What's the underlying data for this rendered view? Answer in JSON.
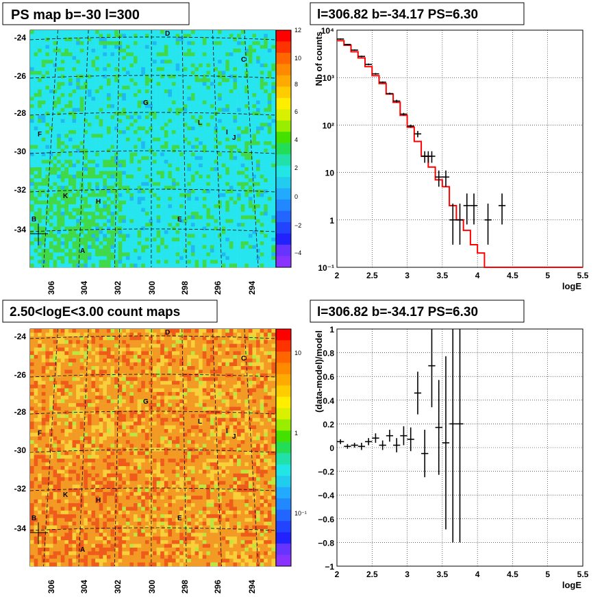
{
  "panels": {
    "map_top": {
      "title": "PS map b=-30 l=300",
      "palette_labels": [
        "12",
        "10",
        "8",
        "6",
        "4",
        "2",
        "0",
        "−2",
        "−4"
      ]
    },
    "map_bottom": {
      "title": "2.50<logE<3.00 count maps",
      "palette_labels": [
        "10",
        "1",
        "10⁻¹"
      ]
    },
    "spectrum": {
      "title": "l=306.82 b=-34.17 PS=6.30"
    },
    "residual": {
      "title": "l=306.82 b=-34.17 PS=6.30"
    }
  },
  "map_common": {
    "lat_ticks": [
      "-24",
      "-26",
      "-28",
      "-30",
      "-32",
      "-34"
    ],
    "lon_ticks": [
      "306",
      "304",
      "302",
      "300",
      "298",
      "296",
      "294"
    ],
    "source_letters": [
      "A",
      "B",
      "C",
      "D",
      "E",
      "F",
      "G",
      "H",
      "I",
      "J",
      "K",
      "L"
    ],
    "colors": {
      "top_base": "#27e5ee",
      "top_hot": "#3fd94a",
      "top_cold": "#1fb8f0",
      "bottom_base": "#f39a24",
      "bottom_hot": "#ee5b1a",
      "bottom_mid": "#f7d03a",
      "bottom_cold": "#bfe63e"
    }
  },
  "chart_data": [
    {
      "type": "line",
      "title": "l=306.82 b=-34.17 PS=6.30",
      "xlabel": "logE",
      "ylabel": "Nb of counts",
      "xlim": [
        2,
        5.5
      ],
      "ylim": [
        0.1,
        10000
      ],
      "log_y": true,
      "grid": true,
      "x_ticks": [
        "2",
        "2.5",
        "3",
        "3.5",
        "4",
        "4.5",
        "5",
        "5.5"
      ],
      "y_ticks": [
        "10⁻¹",
        "1",
        "10",
        "10²",
        "10³",
        "10⁴"
      ],
      "series": [
        {
          "kind": "model_step",
          "color": "#ff0000",
          "x_edges": [
            2.0,
            2.1,
            2.2,
            2.3,
            2.4,
            2.5,
            2.6,
            2.7,
            2.8,
            2.9,
            3.0,
            3.1,
            3.2,
            3.3,
            3.4,
            3.5,
            3.6,
            3.7,
            3.8,
            3.9,
            4.0,
            4.1,
            4.2,
            5.5
          ],
          "values": [
            6000,
            4800,
            3500,
            2600,
            1700,
            1100,
            750,
            450,
            300,
            160,
            90,
            45,
            22,
            13,
            7,
            5,
            2,
            1,
            0.6,
            0.3,
            0.2,
            0.1,
            0.1
          ]
        },
        {
          "kind": "data_points",
          "color": "#000000",
          "x": [
            2.05,
            2.15,
            2.25,
            2.35,
            2.45,
            2.55,
            2.65,
            2.75,
            2.85,
            2.95,
            3.05,
            3.15,
            3.25,
            3.3,
            3.35,
            3.45,
            3.55,
            3.65,
            3.75,
            3.85,
            3.95,
            4.15,
            4.35
          ],
          "y": [
            6500,
            5000,
            3800,
            2800,
            1900,
            1200,
            800,
            460,
            320,
            170,
            95,
            65,
            22,
            22,
            22,
            8,
            8,
            1,
            1,
            2,
            2,
            1,
            2
          ],
          "y_low": [
            6300,
            4850,
            3680,
            2700,
            1820,
            1150,
            770,
            440,
            300,
            160,
            88,
            55,
            16,
            16,
            16,
            5,
            5,
            0.3,
            0.3,
            0.8,
            0.8,
            0.3,
            0.8
          ],
          "y_high": [
            6700,
            5150,
            3920,
            2900,
            1980,
            1250,
            830,
            480,
            340,
            180,
            102,
            75,
            28,
            28,
            28,
            11,
            11,
            2.2,
            2.2,
            3.6,
            3.6,
            2.2,
            3.6
          ]
        }
      ]
    },
    {
      "type": "scatter",
      "title": "l=306.82 b=-34.17 PS=6.30",
      "xlabel": "logE",
      "ylabel": "(data-model)/model",
      "xlim": [
        2,
        5.5
      ],
      "ylim": [
        -1,
        1
      ],
      "grid": true,
      "x_ticks": [
        "2",
        "2.5",
        "3",
        "3.5",
        "4",
        "4.5",
        "5",
        "5.5"
      ],
      "y_ticks": [
        "−1",
        "−0.8",
        "−0.6",
        "−0.4",
        "−0.2",
        "0",
        "0.2",
        "0.4",
        "0.6",
        "0.8",
        "1"
      ],
      "series": [
        {
          "kind": "residual_points",
          "color": "#000000",
          "x": [
            2.05,
            2.15,
            2.25,
            2.35,
            2.45,
            2.55,
            2.65,
            2.75,
            2.85,
            2.95,
            3.05,
            3.15,
            3.25,
            3.35,
            3.45,
            3.55,
            3.65,
            3.75
          ],
          "y": [
            0.05,
            0.01,
            0.02,
            0.01,
            0.05,
            0.08,
            0.02,
            0.1,
            0.02,
            0.1,
            0.07,
            0.46,
            -0.05,
            0.69,
            0.17,
            0.04,
            0.2,
            0.2
          ],
          "err": [
            0.02,
            0.02,
            0.02,
            0.03,
            0.03,
            0.04,
            0.04,
            0.05,
            0.06,
            0.08,
            0.1,
            0.18,
            0.2,
            0.35,
            0.4,
            0.73,
            1.0,
            1.0
          ]
        }
      ]
    }
  ]
}
